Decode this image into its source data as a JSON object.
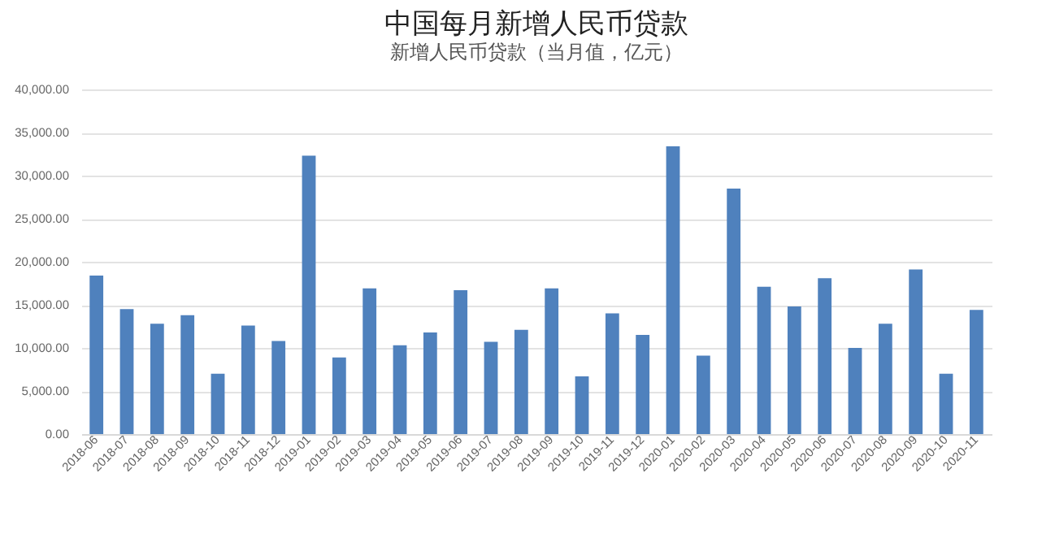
{
  "chart_data": {
    "type": "bar",
    "title": "中国每月新增人民币贷款",
    "subtitle": "新增人民币贷款（当月值，亿元）",
    "categories": [
      "2018-06",
      "2018-07",
      "2018-08",
      "2018-09",
      "2018-10",
      "2018-11",
      "2018-12",
      "2019-01",
      "2019-02",
      "2019-03",
      "2019-04",
      "2019-05",
      "2019-06",
      "2019-07",
      "2019-08",
      "2019-09",
      "2019-10",
      "2019-11",
      "2019-12",
      "2020-01",
      "2020-02",
      "2020-03",
      "2020-04",
      "2020-05",
      "2020-06",
      "2020-07",
      "2020-08",
      "2020-09",
      "2020-10",
      "2020-11"
    ],
    "values": [
      18400,
      14500,
      12800,
      13800,
      7000,
      12600,
      10800,
      32300,
      8900,
      16900,
      10300,
      11800,
      16700,
      10700,
      12100,
      16900,
      6700,
      14000,
      11500,
      33400,
      9100,
      28500,
      17100,
      14800,
      18100,
      10000,
      12800,
      19100,
      7000,
      14400
    ],
    "color": "#4f81bd",
    "ylim": [
      0,
      40000
    ],
    "yticks": [
      {
        "value": 0,
        "label": "0.00"
      },
      {
        "value": 5000,
        "label": "5,000.00"
      },
      {
        "value": 10000,
        "label": "10,000.00"
      },
      {
        "value": 15000,
        "label": "15,000.00"
      },
      {
        "value": 20000,
        "label": "20,000.00"
      },
      {
        "value": 25000,
        "label": "25,000.00"
      },
      {
        "value": 30000,
        "label": "30,000.00"
      },
      {
        "value": 35000,
        "label": "35,000.00"
      },
      {
        "value": 40000,
        "label": "40,000.00"
      }
    ],
    "grid": "y"
  }
}
